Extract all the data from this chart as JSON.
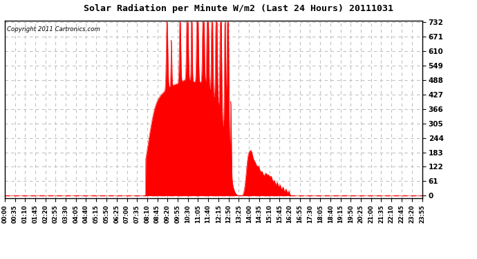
{
  "title": "Solar Radiation per Minute W/m2 (Last 24 Hours) 20111031",
  "copyright": "Copyright 2011 Cartronics.com",
  "y_ticks": [
    0.0,
    61.0,
    122.0,
    183.0,
    244.0,
    305.0,
    366.0,
    427.0,
    488.0,
    549.0,
    610.0,
    671.0,
    732.0
  ],
  "y_max": 732.0,
  "fill_color": "#FF0000",
  "line_color": "#FF0000",
  "dashed_line_color": "#FF0000",
  "background_color": "#FFFFFF",
  "grid_color": "#C0C0C0",
  "title_color": "#000000",
  "x_labels": [
    "00:00",
    "00:35",
    "01:10",
    "01:45",
    "02:20",
    "02:55",
    "03:30",
    "04:05",
    "04:40",
    "05:15",
    "05:50",
    "06:25",
    "07:00",
    "07:35",
    "08:10",
    "08:45",
    "09:20",
    "09:55",
    "10:30",
    "11:05",
    "11:40",
    "12:15",
    "12:50",
    "13:25",
    "14:00",
    "14:35",
    "15:10",
    "15:45",
    "16:20",
    "16:55",
    "17:30",
    "18:05",
    "18:40",
    "19:15",
    "19:50",
    "20:25",
    "21:00",
    "21:35",
    "22:10",
    "22:45",
    "23:20",
    "23:55"
  ]
}
